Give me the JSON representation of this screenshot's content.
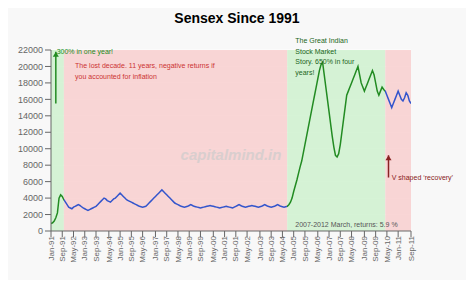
{
  "chart_data": {
    "type": "line",
    "title": "Sensex Since 1991",
    "watermark": "capitalmind.in",
    "background": "#f8f8f8",
    "categories": [
      "Jan-91",
      null,
      null,
      null,
      null,
      null,
      null,
      "Sep-91",
      null,
      null,
      null,
      null,
      null,
      null,
      "May-92",
      null,
      null,
      null,
      null,
      null,
      null,
      "Jan-93",
      null,
      null,
      null,
      null,
      null,
      null,
      "Sep-93",
      null,
      null,
      null,
      null,
      null,
      null,
      null,
      "May-94",
      null,
      null,
      null,
      null,
      null,
      null,
      "Jan-95",
      null,
      null,
      null,
      null,
      null,
      null,
      "Sep-95",
      null,
      null,
      null,
      null,
      null,
      null,
      "May-96",
      null,
      null,
      null,
      null,
      null,
      null,
      null,
      "Jan-97",
      null,
      null,
      null,
      null,
      null,
      null,
      "Sep-97",
      null,
      null,
      null,
      null,
      null,
      null,
      "May-98",
      null,
      null,
      null,
      null,
      null,
      null,
      "Jan-99",
      null,
      null,
      null,
      null,
      null,
      null,
      "Sep-99",
      null,
      null,
      null,
      null,
      null,
      null,
      null,
      "May-00",
      null,
      null,
      null,
      null,
      null,
      null,
      "Jan-01",
      null,
      null,
      null,
      null,
      null,
      null,
      "Sep-01",
      null,
      null,
      null,
      null,
      null,
      null,
      "May-02",
      null,
      null,
      null,
      null,
      null,
      null,
      null,
      "Jan-03",
      null,
      null,
      null,
      null,
      null,
      null,
      "Sep-03",
      null,
      null,
      null,
      null,
      null,
      null,
      "May-04",
      null,
      null,
      null,
      null,
      null,
      null,
      "Jan-05",
      null,
      null,
      null,
      null,
      null,
      null,
      "Sep-05",
      null,
      null,
      null,
      null,
      null,
      null,
      null,
      "May-06",
      null,
      null,
      null,
      null,
      null,
      null,
      "Jan-07",
      null,
      null,
      null,
      null,
      null,
      null,
      "Sep-07",
      null,
      null,
      null,
      null,
      null,
      null,
      "May-08",
      null,
      null,
      null,
      null,
      null,
      null,
      null,
      "Jan-09",
      null,
      null,
      null,
      null,
      null,
      null,
      "Sep-09",
      null,
      null,
      null,
      null,
      null,
      null,
      "May-10",
      null,
      null,
      null,
      null,
      null,
      null,
      "Jan-11",
      null,
      null,
      null,
      null,
      null,
      null,
      null,
      "Sep-11"
    ],
    "values": [
      900,
      1000,
      1200,
      1600,
      2200,
      4000,
      4400,
      4200,
      3800,
      3500,
      3200,
      2900,
      2800,
      2700,
      2900,
      3000,
      3100,
      3200,
      3100,
      2950,
      2800,
      2700,
      2600,
      2500,
      2600,
      2700,
      2800,
      2900,
      3000,
      3200,
      3400,
      3600,
      3800,
      4000,
      3900,
      3700,
      3600,
      3500,
      3700,
      3900,
      4000,
      4200,
      4400,
      4600,
      4400,
      4200,
      4000,
      3800,
      3700,
      3600,
      3500,
      3400,
      3300,
      3200,
      3100,
      3000,
      2950,
      2900,
      2950,
      3000,
      3200,
      3400,
      3600,
      3800,
      4000,
      4200,
      4400,
      4600,
      4800,
      5000,
      4800,
      4600,
      4400,
      4200,
      4000,
      3800,
      3600,
      3400,
      3300,
      3200,
      3100,
      3000,
      2950,
      2900,
      2950,
      3000,
      3100,
      3200,
      3100,
      3000,
      2950,
      2900,
      2850,
      2800,
      2850,
      2900,
      2950,
      3000,
      3050,
      3100,
      3050,
      3000,
      2950,
      2900,
      2850,
      2800,
      2850,
      2900,
      2950,
      3000,
      2950,
      2900,
      2850,
      2800,
      2900,
      3000,
      3100,
      3200,
      3100,
      3000,
      2950,
      2900,
      2950,
      3000,
      3050,
      3100,
      3050,
      3000,
      2950,
      2900,
      2950,
      3000,
      3100,
      3200,
      3100,
      3000,
      2950,
      2900,
      2950,
      3000,
      3100,
      3200,
      3100,
      3000,
      2950,
      2900,
      2950,
      3000,
      3200,
      3500,
      4000,
      4800,
      5500,
      6200,
      7000,
      7800,
      8500,
      9500,
      10500,
      11500,
      12500,
      13500,
      14500,
      15500,
      16500,
      17500,
      18500,
      19500,
      20200,
      20500,
      19000,
      17500,
      16000,
      14500,
      13000,
      11500,
      10200,
      9200,
      9000,
      9400,
      10500,
      12000,
      13500,
      15000,
      16500,
      17000,
      17500,
      18000,
      18500,
      19000,
      19500,
      20000,
      19000,
      18000,
      17500,
      17000,
      17500,
      18000,
      18500,
      19000,
      19500,
      19000,
      18000,
      17000,
      16500,
      17000,
      17500,
      17200,
      17000,
      16500,
      16000,
      15500,
      15000,
      15500,
      16000,
      16500,
      17000,
      16500,
      16000,
      15800,
      16200,
      16800,
      16500,
      15800,
      15500
    ],
    "segments": [
      {
        "start": 0,
        "end": 8,
        "color": "#228B22"
      },
      {
        "start": 8,
        "end": 147,
        "color": "#3355cc"
      },
      {
        "start": 147,
        "end": 208,
        "color": "#228B22"
      },
      {
        "start": 208,
        "end": 224,
        "color": "#3355cc"
      }
    ],
    "regions": [
      {
        "start": 0,
        "end": 8,
        "color": "#ccf0cc"
      },
      {
        "start": 8,
        "end": 147,
        "color": "#f8cccc"
      },
      {
        "start": 147,
        "end": 208,
        "color": "#ccf0cc"
      },
      {
        "start": 208,
        "end": 225,
        "color": "#f8cccc"
      }
    ],
    "ylim": [
      0,
      22000
    ],
    "yticks": [
      0,
      2000,
      4000,
      6000,
      8000,
      10000,
      12000,
      14000,
      16000,
      18000,
      20000,
      22000
    ],
    "grid": true,
    "annotations": [
      {
        "text": "300% in one year!",
        "x": 3.5,
        "y": 21500,
        "color": "#228B22"
      },
      {
        "text": "The lost decade. 11 years, negative returns if\nyou accounted for inflation",
        "x": 15,
        "y": 18500,
        "color": "#cc3333"
      },
      {
        "text": "The Great Indian\nStock Market\nStory. 650% in four\nyears!",
        "x": 152,
        "y": 19000,
        "color": "#226622"
      },
      {
        "text": "V shaped ‘recovery’",
        "x": 212,
        "y": 6200,
        "color": "#882222"
      },
      {
        "text": "2007-2012 March, returns: 5.9 %",
        "x": 152,
        "y": 500,
        "color": "#555555"
      }
    ],
    "arrows": [
      {
        "x": 3,
        "y_start": 15500,
        "y_end": 21800,
        "color": "#228B22"
      },
      {
        "x": 210,
        "y_start": 6500,
        "y_end": 9200,
        "color": "#882222"
      }
    ]
  }
}
